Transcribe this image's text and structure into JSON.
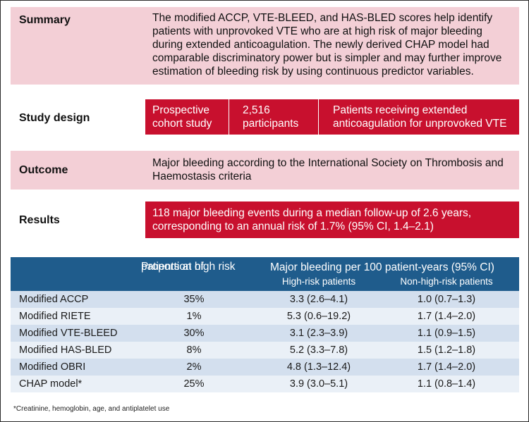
{
  "summary": {
    "label": "Summary",
    "lines": [
      "The modified ACCP, VTE-BLEED, and HAS-BLED scores help identify",
      "patients with unprovoked VTE who are at high risk of major bleeding",
      "during extended anticoagulation. The newly derived CHAP model had",
      "comparable discriminatory power but is simpler and may further improve",
      "estimation of bleeding risk by using continuous predictor variables."
    ]
  },
  "study_design": {
    "label": "Study design",
    "cells": [
      {
        "lines": [
          "Prospective",
          "cohort study"
        ]
      },
      {
        "lines": [
          "2,516",
          "participants"
        ]
      },
      {
        "lines": [
          "Patients receiving extended",
          "anticoagulation for unprovoked VTE"
        ]
      }
    ]
  },
  "outcome": {
    "label": "Outcome",
    "lines": [
      "Major bleeding according to the International Society on Thrombosis and",
      "Haemostasis criteria"
    ]
  },
  "results": {
    "label": "Results",
    "lines": [
      "118 major bleeding events during a median follow-up of 2.6 years,",
      "corresponding to an annual risk of 1.7% (95% CI, 1.4–2.1)"
    ]
  },
  "table": {
    "header": {
      "proportion_line1": "Proportion of",
      "proportion_line2": "patients at high risk",
      "bleeding_title": "Major bleeding per 100 patient-years (95% CI)",
      "high_risk": "High-risk patients",
      "non_high_risk": "Non-high-risk patients"
    },
    "rows": [
      {
        "model": "Modified ACCP",
        "proportion": "35%",
        "high": "3.3 (2.6–4.1)",
        "non_high": "1.0 (0.7–1.3)"
      },
      {
        "model": "Modified RIETE",
        "proportion": "1%",
        "high": "5.3 (0.6–19.2)",
        "non_high": "1.7 (1.4–2.0)"
      },
      {
        "model": "Modified VTE-BLEED",
        "proportion": "30%",
        "high": "3.1 (2.3–3.9)",
        "non_high": "1.1 (0.9–1.5)"
      },
      {
        "model": "Modified HAS-BLED",
        "proportion": "8%",
        "high": "5.2 (3.3–7.8)",
        "non_high": "1.5 (1.2–1.8)"
      },
      {
        "model": "Modified OBRI",
        "proportion": "2%",
        "high": "4.8 (1.3–12.4)",
        "non_high": "1.7 (1.4–2.0)"
      },
      {
        "model": "CHAP model*",
        "proportion": "25%",
        "high": "3.9 (3.0–5.1)",
        "non_high": "1.1 (0.8–1.4)"
      }
    ],
    "footnote": "*Creatinine, hemoglobin, age, and antiplatelet use"
  },
  "colors": {
    "pink": "#f3cfd6",
    "red": "#c8102e",
    "table_header": "#1f5c8c",
    "row_dark": "#d3dfee",
    "row_light": "#eaf0f7"
  }
}
